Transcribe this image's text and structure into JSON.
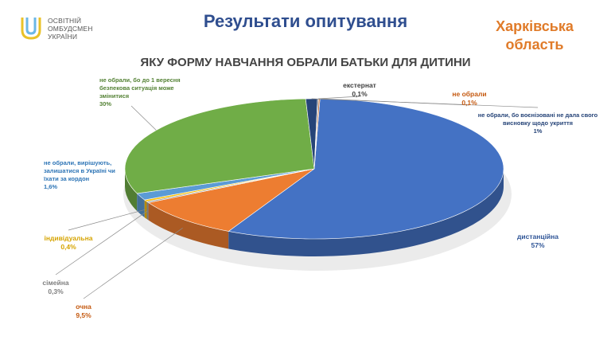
{
  "logo": {
    "lines": [
      "ОСВІТНІЙ",
      "ОМБУДСМЕН",
      "УКРАЇНИ"
    ],
    "icon": "ombudsman-logo-icon"
  },
  "header": {
    "title": "Результати опитування",
    "region_line1": "Харківська",
    "region_line2": "область"
  },
  "colors": {
    "title": "#2f4e8f",
    "region": "#e07b29"
  },
  "chart_data": {
    "type": "pie",
    "title": "ЯКУ ФОРМУ НАВЧАННЯ ОБРАЛИ БАТЬКИ ДЛЯ ДИТИНИ",
    "slices": [
      {
        "label": "дистанційна",
        "value": 57,
        "value_label": "57%",
        "color": "#4472c4"
      },
      {
        "label": "очна",
        "value": 9.5,
        "value_label": "9,5%",
        "color": "#ed7d31"
      },
      {
        "label": "сімейна",
        "value": 0.3,
        "value_label": "0,3%",
        "color": "#a5a5a5"
      },
      {
        "label": "індивідуальна",
        "value": 0.4,
        "value_label": "0,4%",
        "color": "#ffc000"
      },
      {
        "label": "не обрали, вирішують, залишатися в Україні чи їхати за кордон",
        "label_lines": [
          "не обрали, вирішують,",
          "залишатися в Україні чи",
          "їхати за кордон"
        ],
        "value": 1.6,
        "value_label": "1,6%",
        "color": "#5b9bd5"
      },
      {
        "label": "не обрали, бо до 1 вересня безпекова ситуація може змінитися",
        "label_lines": [
          "не обрали, бо до 1 вересня",
          "безпекова ситуація може",
          "змінитися"
        ],
        "value": 30,
        "value_label": "30%",
        "color": "#70ad47"
      },
      {
        "label": "не обрали, бо воєнізовані не дала свого висновку щодо укриття",
        "label_lines": [
          "не обрали, бо воєнізовані не дала свого",
          "висновку щодо укриття"
        ],
        "value": 1,
        "value_label": "1%",
        "color": "#264478"
      },
      {
        "label": "екстернат",
        "value": 0.1,
        "value_label": "0,1%",
        "color": "#7f7f7f"
      },
      {
        "label": "не обрали",
        "value": 0.1,
        "value_label": "0,1%",
        "color": "#c55a11"
      }
    ]
  }
}
